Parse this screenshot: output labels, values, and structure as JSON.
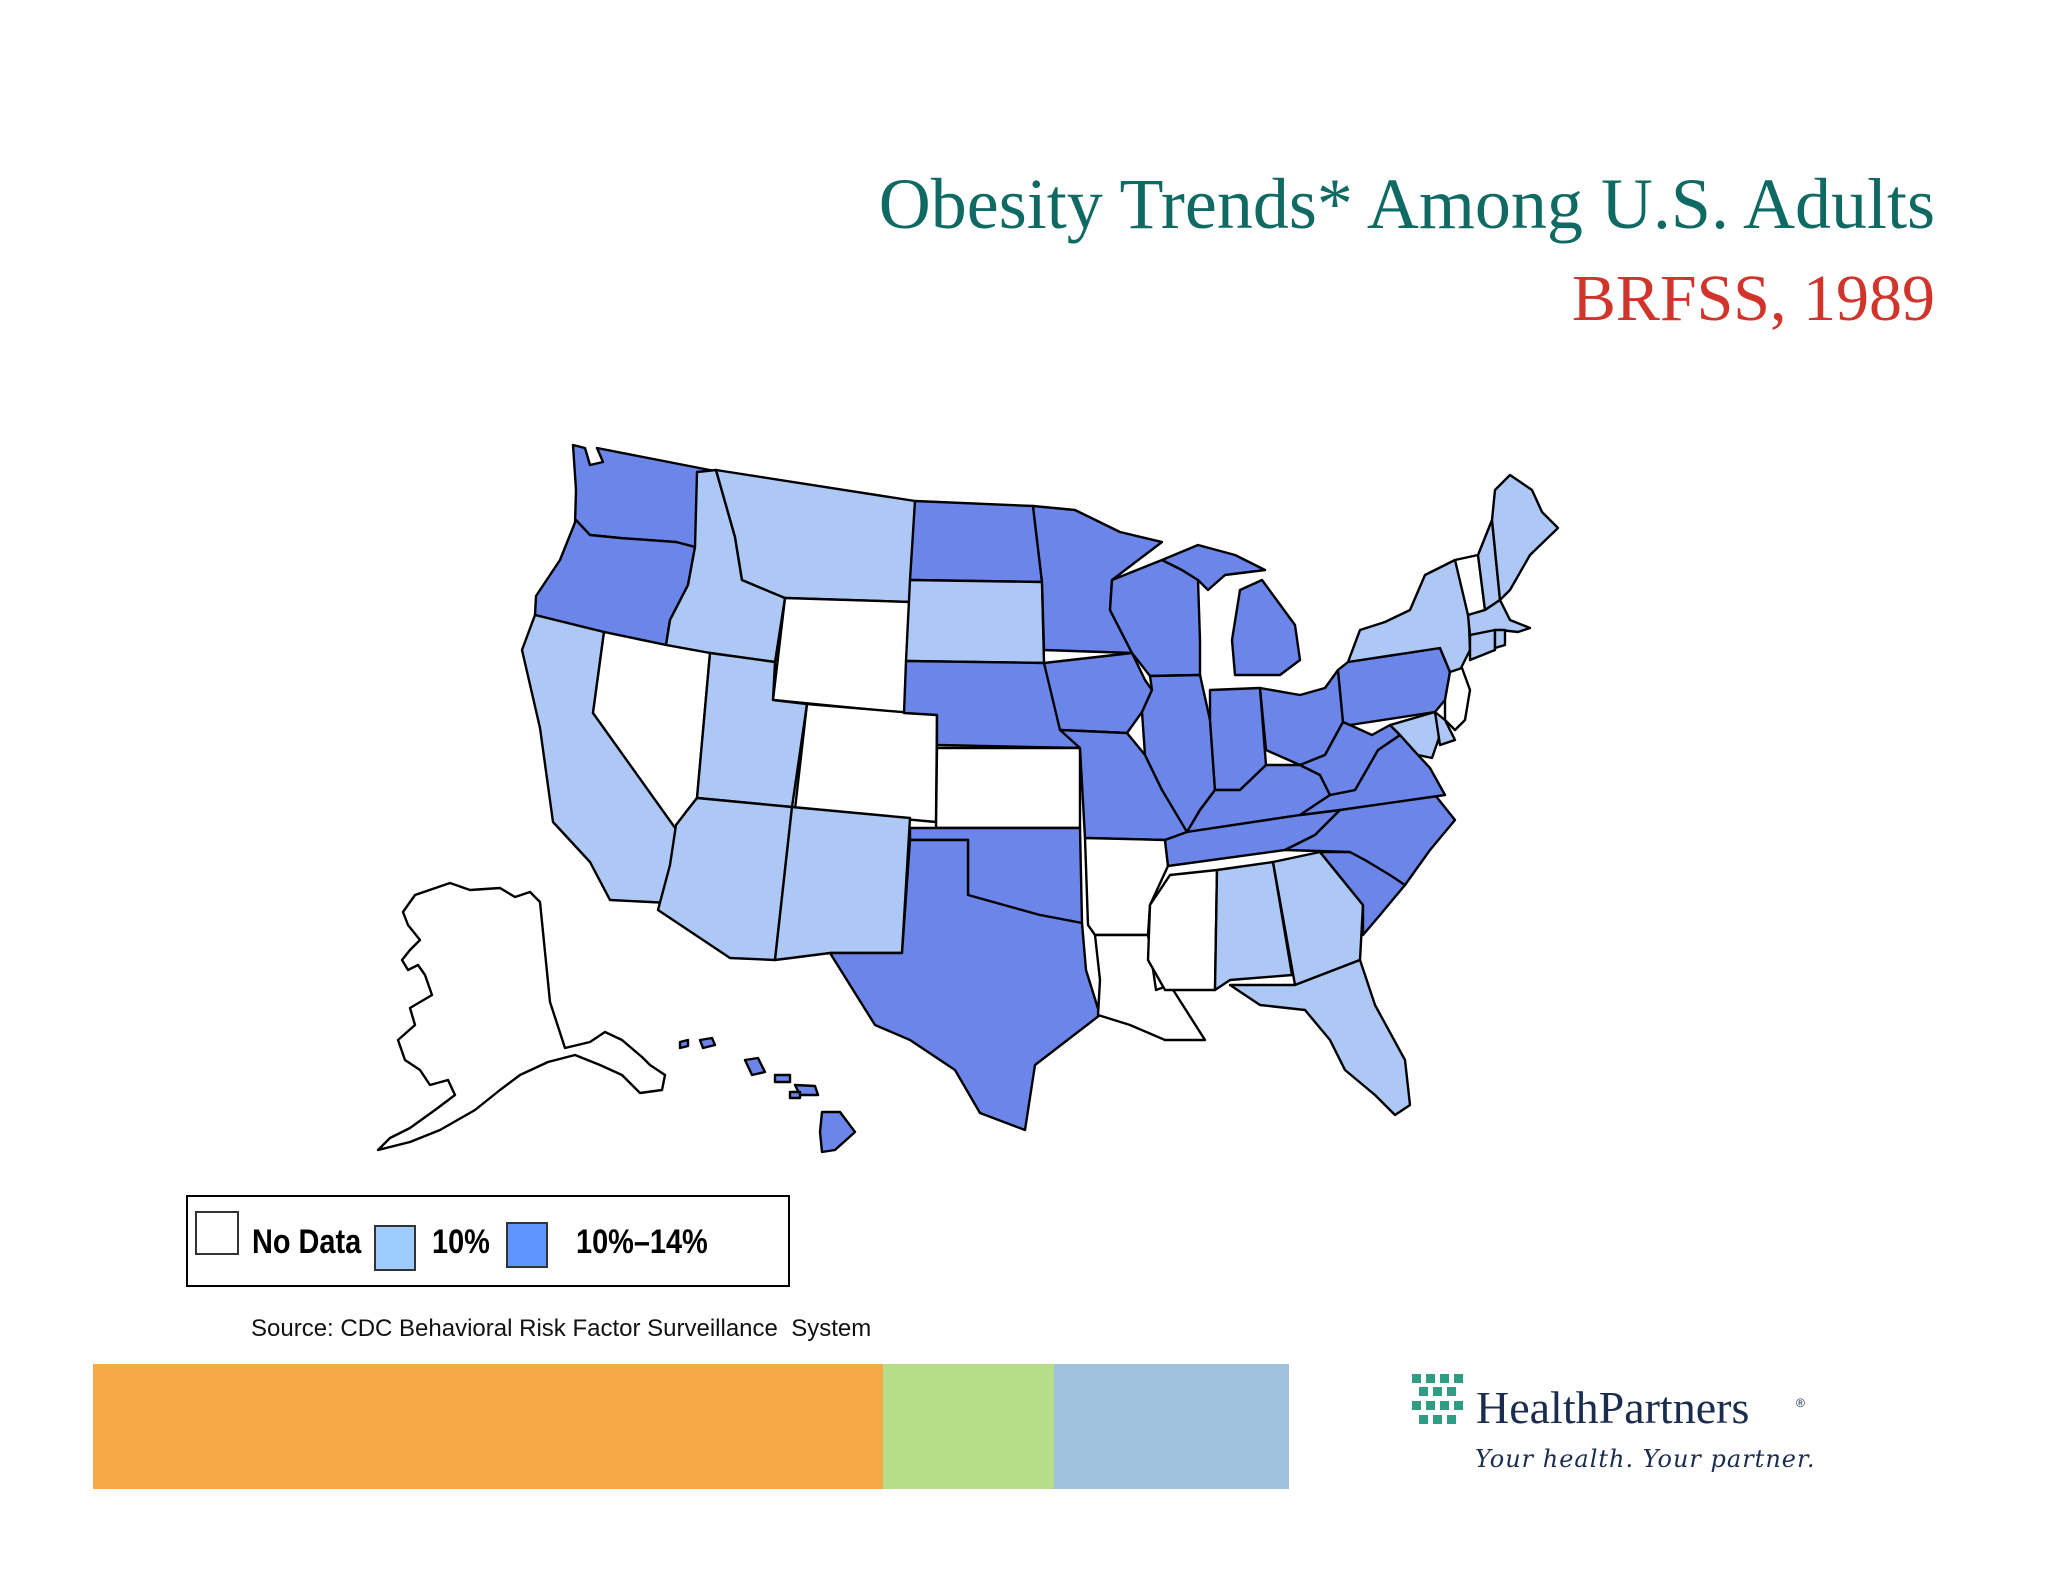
{
  "title": {
    "line1": "Obesity Trends* Among U.S. Adults",
    "line2": "BRFSS, 1989"
  },
  "colors": {
    "title_teal": "#0f6a63",
    "title_red": "#d1342b",
    "no_data": "#ffffff",
    "pct_10": "#adc8f4",
    "pct_10_14": "#6b86e8",
    "legend_pct_10": "#9ecbff",
    "legend_pct_10_14": "#5e95ff",
    "bar_orange": "#f7a94a",
    "bar_green": "#b5dd8a",
    "bar_blue": "#9fc1db"
  },
  "legend": {
    "items": [
      {
        "key": "no_data",
        "label": "No Data"
      },
      {
        "key": "pct_10",
        "label": "10%"
      },
      {
        "key": "pct_10_14",
        "label": "10%–14%"
      }
    ]
  },
  "map_data": {
    "no_data": [
      "NV",
      "WY",
      "CO",
      "KS",
      "AR",
      "LA",
      "MS",
      "VT",
      "NJ",
      "AK"
    ],
    "pct_10": [
      "CA",
      "ID",
      "MT",
      "UT",
      "AZ",
      "NM",
      "SD",
      "AL",
      "GA",
      "FL",
      "NY",
      "ME",
      "NH",
      "MA",
      "CT",
      "RI",
      "MD",
      "DE"
    ],
    "pct_10_14": [
      "WA",
      "OR",
      "ND",
      "MN",
      "NE",
      "IA",
      "WI",
      "MI",
      "IL",
      "IN",
      "OH",
      "PA",
      "MO",
      "OK",
      "TX",
      "KY",
      "TN",
      "WV",
      "VA",
      "NC",
      "SC",
      "HI"
    ]
  },
  "source": "Source: CDC Behavioral Risk Factor Surveillance  System",
  "logo": {
    "name": "HealthPartners",
    "tagline": "Your health. Your partner.",
    "icon": "healthpartners-grid-icon"
  }
}
